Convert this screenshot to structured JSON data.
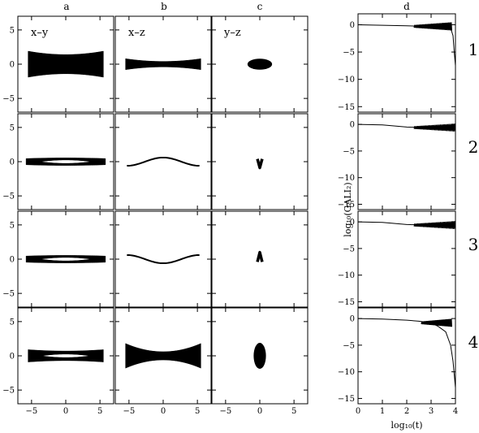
{
  "figure": {
    "column_titles": [
      "a",
      "b",
      "c",
      "d"
    ],
    "row_labels": [
      "1",
      "2",
      "3",
      "4"
    ],
    "panel_labels": [
      "x–y",
      "x–z",
      "y–z"
    ]
  },
  "chart_data": [
    {
      "type": "scatter",
      "panels": "orbit projections, columns a–c",
      "xlim": [
        -7,
        7
      ],
      "ylim": [
        -7,
        7
      ],
      "x_ticks": [
        -5,
        0,
        5
      ],
      "y_ticks": [
        -5,
        0,
        5
      ],
      "rows": [
        {
          "row": "1",
          "x-y": {
            "shape": "band",
            "x_extent": 5.5,
            "half_width_edge": 1.9,
            "half_width_mid": 1.4
          },
          "x-z": {
            "shape": "waist",
            "x_extent": 5.5,
            "half_width_edge": 0.8,
            "half_width_mid": 0.4
          },
          "y-z": {
            "shape": "blob",
            "x_extent": 1.8,
            "y_extent": 0.8
          }
        },
        {
          "row": "2",
          "x-y": {
            "shape": "lens",
            "x_extent": 5.8,
            "half_width_edge": 0.45,
            "half_width_mid": 0.55
          },
          "x-z": {
            "shape": "curve",
            "x_extent": 5.3,
            "amplitude": 0.6,
            "offset": -0.6
          },
          "y-z": {
            "shape": "v",
            "y_top": 0.4,
            "y_bottom": -0.9
          }
        },
        {
          "row": "3",
          "x-y": {
            "shape": "lens",
            "x_extent": 5.8,
            "half_width_edge": 0.45,
            "half_width_mid": 0.55
          },
          "x-z": {
            "shape": "curve",
            "x_extent": 5.3,
            "amplitude": -0.6,
            "offset": 0.6
          },
          "y-z": {
            "shape": "lambda",
            "y_top": 1.0,
            "y_bottom": -0.4
          }
        },
        {
          "row": "4",
          "x-y": {
            "shape": "lens-thick",
            "x_extent": 5.5,
            "half_width_edge": 0.9,
            "half_width_mid": 0.7
          },
          "x-z": {
            "shape": "waist",
            "x_extent": 5.5,
            "half_width_edge": 1.8,
            "half_width_mid": 0.6
          },
          "y-z": {
            "shape": "blob",
            "x_extent": 0.9,
            "y_extent": 1.9
          }
        }
      ]
    },
    {
      "type": "line",
      "panels": "column d",
      "xlabel": "log₁₀(t)",
      "ylabel": "log₁₀(GALI₂)",
      "xlim": [
        0,
        4
      ],
      "ylim": [
        -16,
        2
      ],
      "x_ticks": [
        0,
        1,
        2,
        3,
        4
      ],
      "y_ticks": [
        0,
        -5,
        -10,
        -15
      ],
      "rows": [
        {
          "row": "1",
          "x": [
            0,
            1,
            2,
            3,
            3.3,
            3.6,
            3.8,
            3.9,
            3.95,
            4.0
          ],
          "y": [
            0,
            -0.1,
            -0.2,
            -0.3,
            -0.4,
            -0.5,
            -0.6,
            -2.0,
            -5.0,
            -7.5
          ]
        },
        {
          "row": "2",
          "x": [
            0,
            1,
            2,
            3,
            4
          ],
          "y": [
            0,
            -0.1,
            -0.5,
            -0.6,
            -0.7
          ]
        },
        {
          "row": "3",
          "x": [
            0,
            1,
            2,
            3,
            4
          ],
          "y": [
            0,
            -0.1,
            -0.5,
            -0.6,
            -0.7
          ]
        },
        {
          "row": "4",
          "x": [
            0,
            1,
            2,
            2.5,
            3,
            3.3,
            3.6,
            3.8,
            3.9,
            4.0
          ],
          "y": [
            0,
            -0.1,
            -0.3,
            -0.5,
            -0.8,
            -1.5,
            -2.5,
            -5.0,
            -8.0,
            -13.0
          ]
        }
      ]
    }
  ]
}
